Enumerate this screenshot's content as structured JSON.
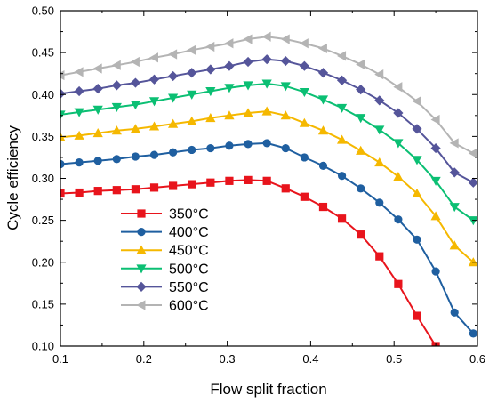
{
  "chart_data": {
    "type": "line",
    "xlabel": "Flow split fraction",
    "ylabel": "Cycle efficiency",
    "xlim": [
      0.1,
      0.6
    ],
    "ylim": [
      0.1,
      0.5
    ],
    "xticks": [
      "0.1",
      "0.2",
      "0.3",
      "0.4",
      "0.5",
      "0.6"
    ],
    "yticks": [
      "0.10",
      "0.15",
      "0.20",
      "0.25",
      "0.30",
      "0.35",
      "0.40",
      "0.45",
      "0.50"
    ],
    "grid": false,
    "legend_position": "lower-left",
    "x": [
      0.1,
      0.1225,
      0.145,
      0.1675,
      0.19,
      0.2125,
      0.235,
      0.2575,
      0.28,
      0.3025,
      0.325,
      0.3475,
      0.37,
      0.3925,
      0.415,
      0.4375,
      0.46,
      0.4825,
      0.505,
      0.5275,
      0.55,
      0.5725,
      0.595
    ],
    "series": [
      {
        "name": "350°C",
        "color": "#e8141c",
        "marker": "square",
        "values": [
          0.282,
          0.283,
          0.285,
          0.286,
          0.287,
          0.289,
          0.291,
          0.293,
          0.295,
          0.297,
          0.298,
          0.297,
          0.288,
          0.278,
          0.266,
          0.252,
          0.233,
          0.207,
          0.174,
          0.136,
          0.1,
          null,
          null
        ]
      },
      {
        "name": "400°C",
        "color": "#1f5fa0",
        "marker": "circle",
        "values": [
          0.317,
          0.319,
          0.321,
          0.323,
          0.326,
          0.328,
          0.331,
          0.334,
          0.336,
          0.339,
          0.341,
          0.342,
          0.336,
          0.325,
          0.315,
          0.303,
          0.288,
          0.271,
          0.251,
          0.227,
          0.189,
          0.14,
          0.115
        ]
      },
      {
        "name": "450°C",
        "color": "#f5b800",
        "marker": "triangle-up",
        "values": [
          0.349,
          0.351,
          0.354,
          0.357,
          0.359,
          0.362,
          0.365,
          0.368,
          0.372,
          0.375,
          0.378,
          0.38,
          0.375,
          0.366,
          0.357,
          0.346,
          0.333,
          0.319,
          0.302,
          0.282,
          0.255,
          0.22,
          0.2
        ]
      },
      {
        "name": "500°C",
        "color": "#0bbf73",
        "marker": "triangle-down",
        "values": [
          0.376,
          0.379,
          0.382,
          0.385,
          0.388,
          0.392,
          0.396,
          0.4,
          0.404,
          0.408,
          0.411,
          0.413,
          0.41,
          0.403,
          0.394,
          0.384,
          0.372,
          0.358,
          0.342,
          0.322,
          0.297,
          0.266,
          0.25
        ]
      },
      {
        "name": "550°C",
        "color": "#55559a",
        "marker": "diamond",
        "values": [
          0.401,
          0.404,
          0.407,
          0.411,
          0.414,
          0.418,
          0.422,
          0.426,
          0.43,
          0.434,
          0.439,
          0.442,
          0.44,
          0.434,
          0.426,
          0.417,
          0.406,
          0.393,
          0.378,
          0.359,
          0.336,
          0.307,
          0.295
        ]
      },
      {
        "name": "600°C",
        "color": "#b4b4b4",
        "marker": "triangle-left",
        "values": [
          0.423,
          0.427,
          0.431,
          0.435,
          0.439,
          0.444,
          0.448,
          0.453,
          0.457,
          0.461,
          0.466,
          0.469,
          0.466,
          0.461,
          0.455,
          0.446,
          0.436,
          0.424,
          0.409,
          0.392,
          0.37,
          0.342,
          0.33
        ]
      }
    ]
  }
}
